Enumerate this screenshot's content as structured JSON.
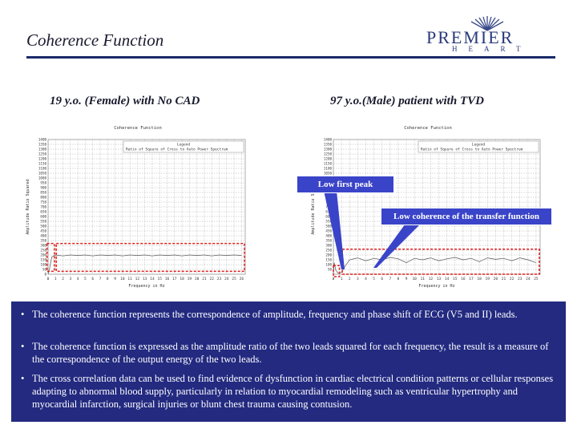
{
  "header": {
    "title": "Coherence Function",
    "logo_main": "PREMIER",
    "logo_sub": "HEART"
  },
  "subtitles": {
    "left": "19 y.o. (Female) with No CAD",
    "right": "97 y.o.(Male) patient with TVD"
  },
  "callouts": {
    "first_peak": "Low first peak",
    "transfer": "Low coherence of the transfer function"
  },
  "colors": {
    "accent": "#1b2a6b",
    "panel": "#232a80",
    "callout": "#3a44c8",
    "highlight": "#e02020"
  },
  "bullets": [
    "The coherence function represents the correspondence of amplitude, frequency and phase shift of ECG (V5 and II) leads.",
    "The coherence function is expressed as the amplitude ratio of the two leads squared for each frequency, the result is a measure of the correspondence of the output energy of the two leads.",
    "The cross correlation data can be used to find evidence of dysfunction in cardiac electrical condition patterns or cellular responses adapting to abnormal blood supply, particularly in relation to myocardial remodeling such as ventricular hypertrophy and myocardial infarction, surgical injuries or blunt chest trauma causing contusion."
  ],
  "chart_data": [
    {
      "type": "line",
      "title": "Coherence Function",
      "legend_title": "Legend",
      "legend_entry": "Ratio of Square of Cross to Auto Power Spectrum",
      "ylabel": "Amplitude Ratio Squared",
      "xlabel": "Frequency in Hz",
      "x_ticks": [
        0,
        1,
        2,
        3,
        4,
        5,
        6,
        7,
        8,
        9,
        10,
        11,
        12,
        13,
        14,
        15,
        16,
        17,
        18,
        19,
        20,
        21,
        22,
        23,
        24,
        25,
        26
      ],
      "y_ticks": [
        0,
        50,
        100,
        150,
        200,
        250,
        300,
        350,
        400,
        450,
        500,
        550,
        600,
        650,
        700,
        750,
        800,
        850,
        900,
        950,
        1000,
        1050,
        1100,
        1150,
        1200,
        1250,
        1300,
        1350,
        1400
      ],
      "ylim": [
        0,
        1400
      ],
      "xlim": [
        0,
        26.5
      ],
      "legend": "top-right",
      "grid": true,
      "series": [
        {
          "values": [
            [
              0,
              0
            ],
            [
              0.2,
              60
            ],
            [
              0.5,
              180
            ],
            [
              1,
              200
            ],
            [
              2,
              190
            ],
            [
              3,
              200
            ],
            [
              4,
              195
            ],
            [
              5,
              200
            ],
            [
              6,
              190
            ],
            [
              7,
              200
            ],
            [
              8,
              195
            ],
            [
              9,
              200
            ],
            [
              10,
              190
            ],
            [
              11,
              200
            ],
            [
              12,
              195
            ],
            [
              13,
              200
            ],
            [
              14,
              190
            ],
            [
              15,
              200
            ],
            [
              16,
              195
            ],
            [
              17,
              200
            ],
            [
              18,
              190
            ],
            [
              19,
              200
            ],
            [
              20,
              195
            ],
            [
              21,
              200
            ],
            [
              22,
              190
            ],
            [
              23,
              200
            ],
            [
              24,
              195
            ],
            [
              25,
              200
            ],
            [
              26,
              195
            ]
          ]
        }
      ]
    },
    {
      "type": "line",
      "title": "Coherence Function",
      "legend_title": "Legend",
      "legend_entry": "Ratio of Square of Cross to Auto Power Spectrum",
      "ylabel": "Amplitude Ratio Squared",
      "xlabel": "Frequency in Hz",
      "x_ticks": [
        0,
        1,
        2,
        3,
        4,
        5,
        6,
        7,
        8,
        9,
        10,
        11,
        12,
        13,
        14,
        15,
        16,
        17,
        18,
        19,
        20,
        21,
        22,
        23,
        24,
        25
      ],
      "y_ticks": [
        50,
        100,
        150,
        200,
        250,
        300,
        350,
        400,
        450,
        500,
        550,
        600,
        650,
        700,
        750,
        800,
        850,
        900,
        950,
        1000,
        1050,
        1100,
        1150,
        1200,
        1250,
        1300,
        1350,
        1400
      ],
      "ylim": [
        0,
        1400
      ],
      "xlim": [
        0,
        25.5
      ],
      "legend": "top-right",
      "grid": true,
      "series": [
        {
          "values": [
            [
              0,
              0
            ],
            [
              0.1,
              120
            ],
            [
              0.3,
              40
            ],
            [
              0.6,
              10
            ],
            [
              1,
              20
            ],
            [
              1.5,
              90
            ],
            [
              2,
              150
            ],
            [
              3,
              170
            ],
            [
              4,
              140
            ],
            [
              5,
              165
            ],
            [
              6,
              150
            ],
            [
              7,
              175
            ],
            [
              8,
              160
            ],
            [
              9,
              120
            ],
            [
              10,
              165
            ],
            [
              11,
              150
            ],
            [
              12,
              170
            ],
            [
              13,
              140
            ],
            [
              14,
              160
            ],
            [
              15,
              175
            ],
            [
              16,
              150
            ],
            [
              17,
              165
            ],
            [
              18,
              130
            ],
            [
              19,
              170
            ],
            [
              20,
              155
            ],
            [
              21,
              165
            ],
            [
              22,
              140
            ],
            [
              23,
              170
            ],
            [
              24,
              150
            ],
            [
              25,
              120
            ]
          ]
        }
      ]
    }
  ]
}
